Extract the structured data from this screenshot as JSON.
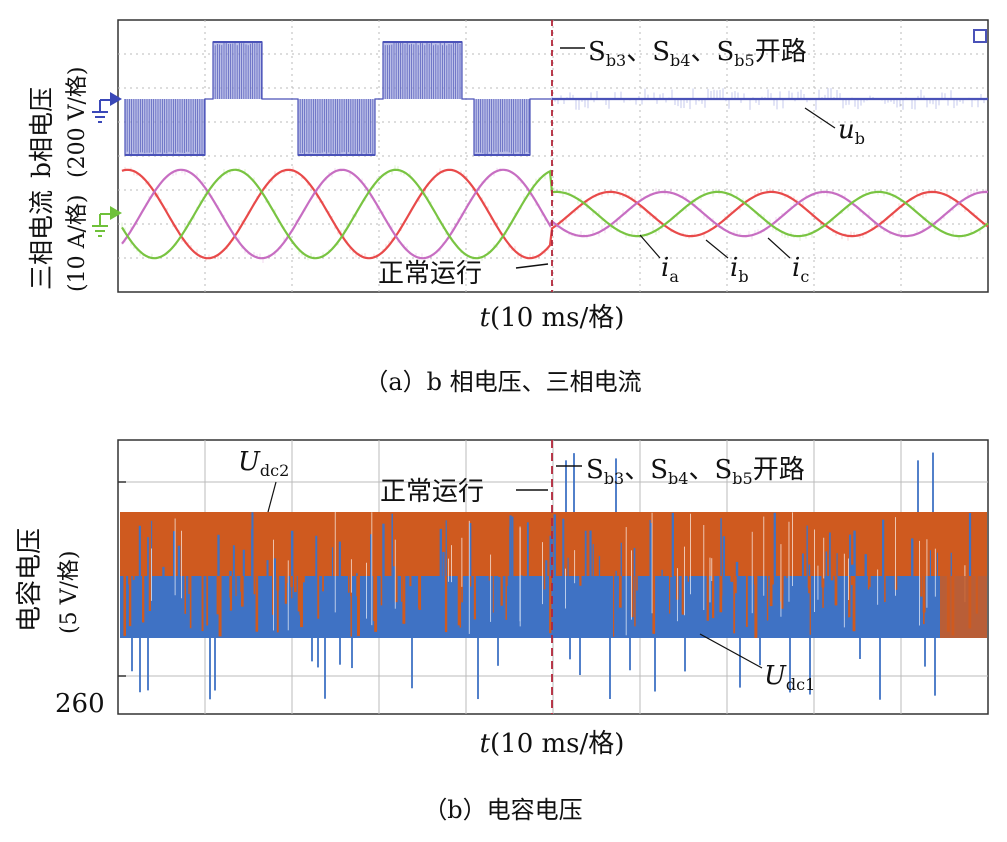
{
  "chart_data": [
    {
      "type": "line",
      "panel": "a",
      "caption": "（a）b 相电压、三相电流",
      "xlabel": "t(10 ms/格)",
      "x_unit": "10 ms/格",
      "ylabel_left": [
        "三相电流",
        "(10 A/格)"
      ],
      "ylabel_right": [
        "b相电压",
        "(200 V/格)"
      ],
      "event_time_div": 5,
      "annotations": {
        "normal": "正常运行",
        "fault": "Sb3、Sb4、Sb5开路"
      },
      "series": [
        {
          "name": "ub",
          "label_main": "u",
          "label_sub": "b",
          "color": "#4a52b8",
          "before_fault": "bipolar-pwm",
          "after_fault": 0
        },
        {
          "name": "ia",
          "label_main": "i",
          "label_sub": "a",
          "color": "#e84a4a",
          "amplitude_div_before": 1.3,
          "amplitude_div_after": 0.65
        },
        {
          "name": "ib",
          "label_main": "i",
          "label_sub": "b",
          "color": "#c76ec2",
          "amplitude_div_before": 1.3,
          "amplitude_div_after": 0.65
        },
        {
          "name": "ic",
          "label_main": "i",
          "label_sub": "c",
          "color": "#79c442",
          "amplitude_div_before": 1.3,
          "amplitude_div_after": 0.65
        }
      ],
      "period_div": 1.85,
      "grid": true
    },
    {
      "type": "line",
      "panel": "b",
      "caption": "（b）电容电压",
      "xlabel": "t(10 ms/格)",
      "x_unit": "10 ms/格",
      "ylabel": [
        "电容电压",
        "(5 V/格)"
      ],
      "ytick": "260",
      "event_time_div": 5,
      "annotations": {
        "normal": "正常运行",
        "fault": "Sb3、Sb4、Sb5开路"
      },
      "series": [
        {
          "name": "Udc2",
          "label_main": "U",
          "label_sub": "dc2",
          "color": "#cf5a1f"
        },
        {
          "name": "Udc1",
          "label_main": "U",
          "label_sub": "dc1",
          "color": "#3f72c4"
        }
      ],
      "grid": true
    }
  ]
}
